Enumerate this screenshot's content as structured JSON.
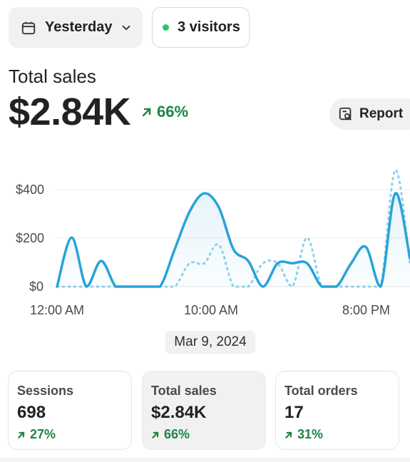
{
  "header": {
    "date_button_label": "Yesterday",
    "visitors_label": "3 visitors"
  },
  "summary": {
    "title": "Total sales",
    "value": "$2.84K",
    "change": "66%",
    "report_label": "Report"
  },
  "colors": {
    "accent_line": "#29a3d8",
    "comparison_line": "#8ed1ea",
    "positive": "#1e8449",
    "live_dot": "#29c46d"
  },
  "chart_data": {
    "type": "line",
    "y_tick_labels": [
      "$400",
      "$200",
      "$0"
    ],
    "x_tick_labels": [
      "12:00 AM",
      "10:00 AM",
      "8:00 PM"
    ],
    "ylim": [
      0,
      520
    ],
    "grid": true,
    "series": [
      {
        "style": "solid",
        "values": [
          0,
          210,
          0,
          110,
          0,
          0,
          0,
          0,
          160,
          320,
          400,
          340,
          160,
          110,
          0,
          100,
          100,
          100,
          0,
          0,
          100,
          170,
          0,
          400,
          120
        ]
      },
      {
        "style": "dotted",
        "values": [
          0,
          0,
          0,
          0,
          0,
          0,
          0,
          0,
          0,
          100,
          100,
          180,
          0,
          0,
          100,
          100,
          0,
          210,
          0,
          0,
          0,
          0,
          0,
          500,
          100
        ]
      }
    ],
    "date_label": "Mar 9, 2024"
  },
  "cards": [
    {
      "label": "Sessions",
      "value": "698",
      "change": "27%"
    },
    {
      "label": "Total sales",
      "value": "$2.84K",
      "change": "66%"
    },
    {
      "label": "Total orders",
      "value": "17",
      "change": "31%"
    }
  ]
}
